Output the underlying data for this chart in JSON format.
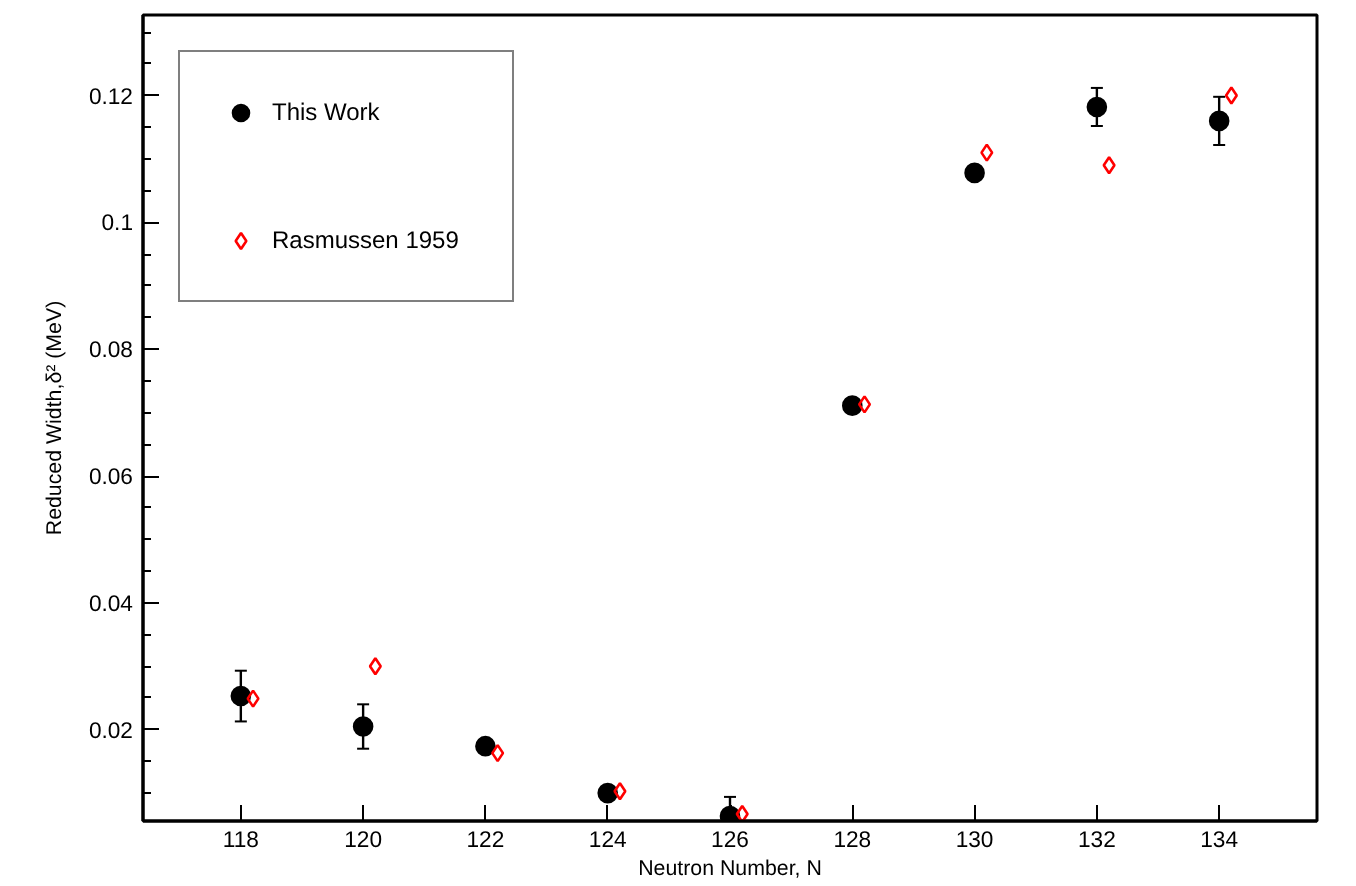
{
  "chart_data": {
    "type": "scatter",
    "xlabel": "Neutron Number, N",
    "ylabel": "Reduced Width,δ² (MeV)",
    "xlim": [
      116.4,
      135.6
    ],
    "ylim": [
      0.0056,
      0.1327
    ],
    "xticks": [
      118,
      120,
      122,
      124,
      126,
      128,
      130,
      132,
      134
    ],
    "yticks": [
      {
        "value": 0.01,
        "label": null
      },
      {
        "value": 0.015,
        "label": null
      },
      0.02,
      {
        "value": 0.025,
        "label": null
      },
      {
        "value": 0.03,
        "label": null
      },
      {
        "value": 0.035,
        "label": null
      },
      0.04,
      {
        "value": 0.045,
        "label": null
      },
      {
        "value": 0.05,
        "label": null
      },
      {
        "value": 0.055,
        "label": null
      },
      0.06,
      {
        "value": 0.065,
        "label": null
      },
      {
        "value": 0.07,
        "label": null
      },
      {
        "value": 0.075,
        "label": null
      },
      0.08,
      {
        "value": 0.085,
        "label": null
      },
      {
        "value": 0.09,
        "label": null
      },
      {
        "value": 0.095,
        "label": null
      },
      0.1,
      {
        "value": 0.105,
        "label": null
      },
      {
        "value": 0.11,
        "label": null
      },
      {
        "value": 0.115,
        "label": null
      },
      0.12,
      {
        "value": 0.125,
        "label": null
      },
      {
        "value": 0.13,
        "label": null
      }
    ],
    "grid": false,
    "legend": "top left",
    "series": [
      {
        "name": "This Work",
        "color": "#000000",
        "marker": "circle",
        "x": [
          118,
          120,
          122,
          124,
          126,
          128,
          130,
          132,
          134
        ],
        "values": [
          0.0253,
          0.0205,
          0.0174,
          0.01,
          0.0064,
          0.0711,
          0.1078,
          0.1182,
          0.116
        ],
        "errors": [
          0.004,
          0.0035,
          0.001,
          null,
          0.003,
          null,
          0.001,
          0.003,
          0.0038
        ]
      },
      {
        "name": "Rasmussen 1959",
        "color": "#ff0000",
        "marker": "diamond",
        "x": [
          118.2,
          120.2,
          122.2,
          124.2,
          126.2,
          128.2,
          130.2,
          132.2,
          134.2
        ],
        "values": [
          0.0249,
          0.03,
          0.0163,
          0.0103,
          0.0067,
          0.0713,
          0.111,
          0.109,
          0.12
        ]
      }
    ]
  }
}
